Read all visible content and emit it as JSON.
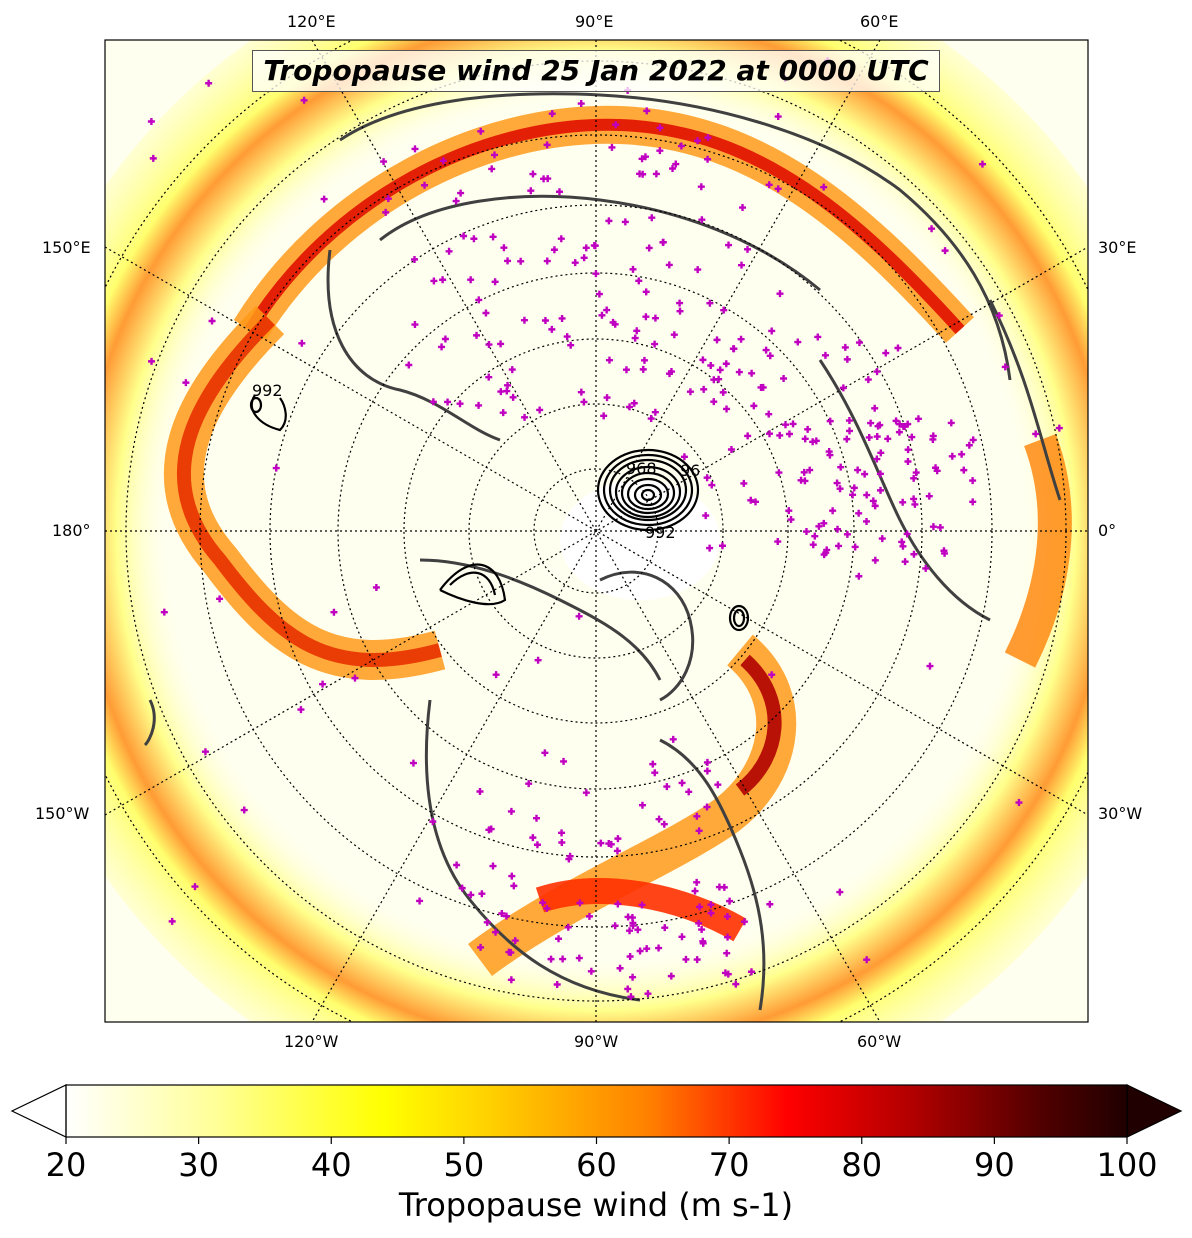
{
  "title": "Tropopause wind 25 Jan 2022 at 0000 UTC",
  "map": {
    "projection": "north-polar-stereographic",
    "meridian_labels_top": [
      "120°E",
      "90°E",
      "60°E"
    ],
    "meridian_labels_bottom": [
      "120°W",
      "90°W",
      "60°W"
    ],
    "meridian_labels_left": [
      "150°E",
      "180°",
      "150°W"
    ],
    "meridian_labels_right": [
      "30°E",
      "0°",
      "30°W"
    ],
    "contour_labels": [
      "992",
      "968",
      "96",
      "992"
    ],
    "colors": {
      "coastline": "#404040",
      "gridline": "#000000",
      "station_marker": "#c000c0",
      "contour": "#000000"
    }
  },
  "colorbar": {
    "label": "Tropopause wind (m s-1)",
    "ticks": [
      "20",
      "30",
      "40",
      "50",
      "60",
      "70",
      "80",
      "90",
      "100"
    ],
    "min": 20,
    "max": 100,
    "extend": "both",
    "stops": [
      "#ffffff",
      "#ffff99",
      "#ffff00",
      "#ffcc00",
      "#ff8000",
      "#ff0000",
      "#cc0000",
      "#800000",
      "#200000"
    ]
  }
}
